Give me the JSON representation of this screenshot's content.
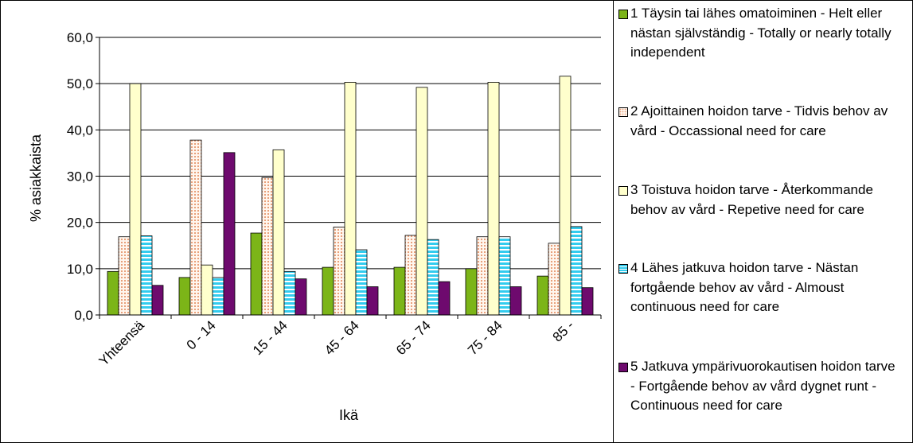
{
  "chart_data": {
    "type": "bar",
    "title": "",
    "xlabel": "Ikä",
    "ylabel": "% asiakkaista",
    "ylim": [
      0,
      60
    ],
    "yticks": [
      "0,0",
      "10,0",
      "20,0",
      "30,0",
      "40,0",
      "50,0",
      "60,0"
    ],
    "grid": true,
    "legend_position": "right",
    "categories": [
      "Yhteensä",
      "0 - 14",
      "15 - 44",
      "45 - 64",
      "65 - 74",
      "75 - 84",
      "85 -"
    ],
    "series": [
      {
        "name": "1  Täysin tai lähes omatoiminen - Helt eller nästan självständig - Totally or nearly totally independent",
        "color": "#7cb518",
        "pattern": "solid",
        "values": [
          9.4,
          8.1,
          17.7,
          10.3,
          10.3,
          10.0,
          8.4
        ]
      },
      {
        "name": "2  Ajoittainen hoidon tarve - Tidvis behov av vård - Occassional need for care",
        "color": "#f5c9a8",
        "pattern": "dots",
        "values": [
          16.9,
          37.8,
          29.7,
          19.0,
          17.2,
          16.9,
          15.5
        ]
      },
      {
        "name": "3  Toistuva hoidon tarve - Återkommande behov av vård - Repetive need for care",
        "color": "#ffffcc",
        "pattern": "solid",
        "values": [
          50.0,
          10.8,
          35.7,
          50.3,
          49.2,
          50.3,
          51.6
        ]
      },
      {
        "name": "4  Lähes jatkuva hoidon tarve - Nästan fortgående behov av vård - Almoust continuous need for care",
        "color": "#33ccee",
        "pattern": "hstripes",
        "values": [
          17.1,
          8.1,
          9.4,
          14.1,
          16.3,
          16.9,
          19.1
        ]
      },
      {
        "name": "5  Jatkuva ympärivuorokautisen hoidon tarve - Fortgående behov av vård dygnet runt - Continuous need for care",
        "color": "#6e0a6e",
        "pattern": "solid",
        "values": [
          6.4,
          35.1,
          7.8,
          6.1,
          7.2,
          6.1,
          5.9
        ]
      }
    ]
  }
}
